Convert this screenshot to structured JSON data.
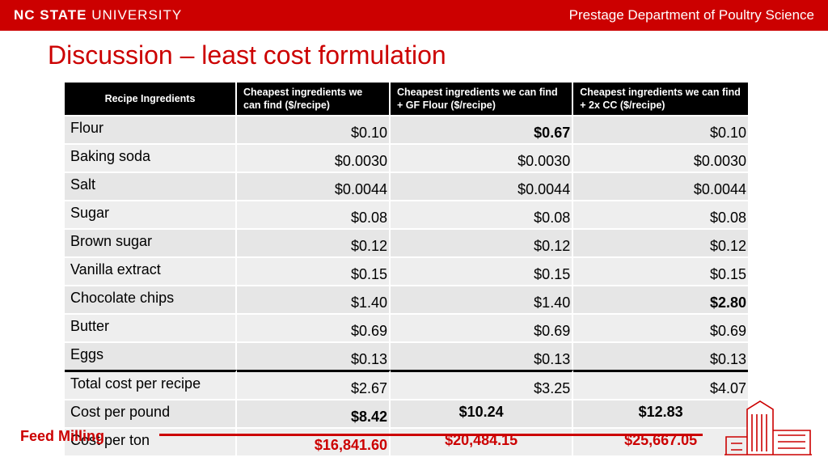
{
  "header": {
    "brand_bold": "NC STATE",
    "brand_rest": " UNIVERSITY",
    "department": "Prestage Department of Poultry Science"
  },
  "slide": {
    "title": "Discussion – least cost formulation"
  },
  "table": {
    "columns": [
      "Recipe Ingredients",
      "Cheapest ingredients we can find ($/recipe)",
      "Cheapest ingredients we can find + GF Flour ($/recipe)",
      "Cheapest ingredients we can find + 2x CC ($/recipe)"
    ],
    "rows": [
      {
        "label": "Flour",
        "values": [
          "$0.10",
          "$0.67",
          "$0.10"
        ]
      },
      {
        "label": "Baking soda",
        "values": [
          "$0.0030",
          "$0.0030",
          "$0.0030"
        ]
      },
      {
        "label": "Salt",
        "values": [
          "$0.0044",
          "$0.0044",
          "$0.0044"
        ]
      },
      {
        "label": "Sugar",
        "values": [
          "$0.08",
          "$0.08",
          "$0.08"
        ]
      },
      {
        "label": "Brown sugar",
        "values": [
          "$0.12",
          "$0.12",
          "$0.12"
        ]
      },
      {
        "label": "Vanilla extract",
        "values": [
          "$0.15",
          "$0.15",
          "$0.15"
        ]
      },
      {
        "label": "Chocolate chips",
        "values": [
          "$1.40",
          "$1.40",
          "$2.80"
        ]
      },
      {
        "label": "Butter",
        "values": [
          "$0.69",
          "$0.69",
          "$0.69"
        ]
      },
      {
        "label": "Eggs",
        "values": [
          "$0.13",
          "$0.13",
          "$0.13"
        ]
      },
      {
        "label": "Total cost per recipe",
        "values": [
          "$2.67",
          "$3.25",
          "$4.07"
        ]
      },
      {
        "label": "Cost per pound",
        "values": [
          "$8.42",
          "$10.24",
          "$12.83"
        ]
      },
      {
        "label": "Cost per ton",
        "values": [
          "$16,841.60",
          "$20,484.15",
          "$25,667.05"
        ]
      }
    ]
  },
  "footer": {
    "label": "Feed Milling"
  },
  "colors": {
    "accent": "#cc0000",
    "header_bg": "#000000"
  }
}
